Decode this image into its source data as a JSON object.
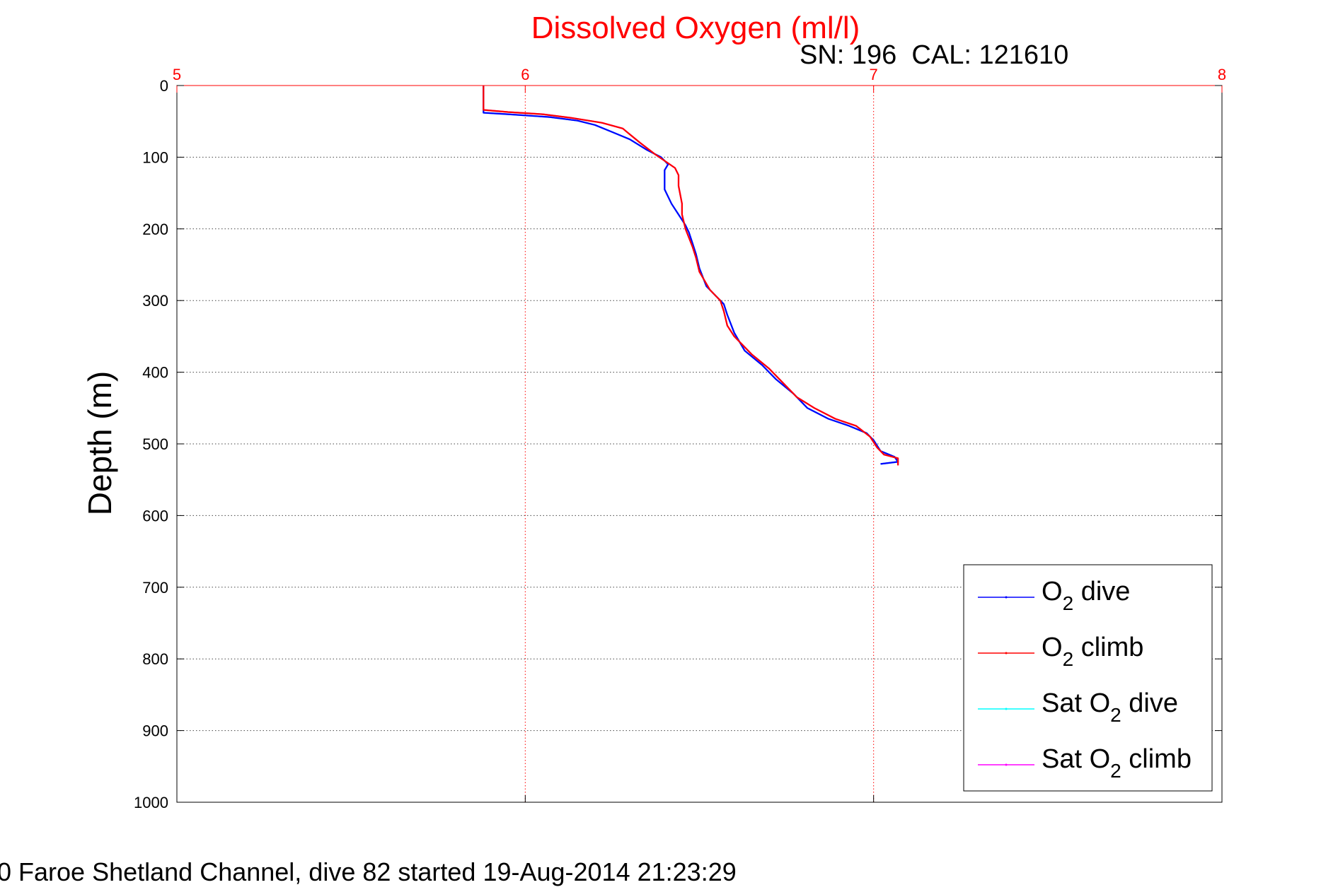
{
  "chart_data": {
    "type": "line",
    "title": "Dissolved Oxygen (ml/l)",
    "subtitle": "SN: 196  CAL: 121610",
    "footer": "0 Faroe Shetland Channel, dive 82 started 19-Aug-2014 21:23:29",
    "xlabel": "",
    "ylabel": "Depth (m)",
    "xlim": [
      5,
      8
    ],
    "ylim": [
      0,
      1000
    ],
    "y_reversed": true,
    "x_ticks": [
      "5",
      "6",
      "7",
      "8"
    ],
    "y_ticks": [
      "0",
      "100",
      "200",
      "300",
      "400",
      "500",
      "600",
      "700",
      "800",
      "900",
      "1000"
    ],
    "x_axis_position": "top",
    "grid": true,
    "legend_position": "bottom-right",
    "colors": {
      "title": "#ff0000",
      "x_axis": "#ff0000",
      "grid_x": "#ff0000",
      "grid_y": "#444444",
      "o2_dive": "#0000ff",
      "o2_climb": "#ff0000",
      "sat_dive": "#00ffff",
      "sat_climb": "#ff00ff"
    },
    "legend": [
      {
        "prefix": "O",
        "sub": "2",
        "suffix": " dive",
        "color": "#0000ff"
      },
      {
        "prefix": "O",
        "sub": "2",
        "suffix": " climb",
        "color": "#ff0000"
      },
      {
        "prefix": "Sat O",
        "sub": "2",
        "suffix": " dive",
        "color": "#00ffff"
      },
      {
        "prefix": "Sat O",
        "sub": "2",
        "suffix": " climb",
        "color": "#ff00ff"
      }
    ],
    "series": [
      {
        "name": "Sat O2 dive",
        "color": "#00ffff",
        "points": [
          [
            5.88,
            0
          ],
          [
            5.88,
            38
          ],
          [
            5.95,
            40
          ],
          [
            6.07,
            44
          ],
          [
            6.15,
            49
          ],
          [
            6.2,
            55
          ],
          [
            6.25,
            65
          ],
          [
            6.3,
            75
          ],
          [
            6.35,
            90
          ],
          [
            6.39,
            100
          ],
          [
            6.41,
            110
          ],
          [
            6.4,
            118
          ],
          [
            6.4,
            130
          ],
          [
            6.4,
            145
          ],
          [
            6.42,
            165
          ],
          [
            6.44,
            180
          ],
          [
            6.46,
            195
          ],
          [
            6.47,
            205
          ],
          [
            6.48,
            220
          ],
          [
            6.49,
            235
          ],
          [
            6.5,
            255
          ],
          [
            6.52,
            280
          ],
          [
            6.55,
            295
          ],
          [
            6.57,
            305
          ],
          [
            6.58,
            320
          ],
          [
            6.6,
            345
          ],
          [
            6.63,
            370
          ],
          [
            6.68,
            390
          ],
          [
            6.72,
            410
          ],
          [
            6.77,
            430
          ],
          [
            6.81,
            450
          ],
          [
            6.87,
            465
          ],
          [
            6.93,
            475
          ],
          [
            6.98,
            485
          ],
          [
            7.0,
            495
          ],
          [
            7.02,
            510
          ],
          [
            7.06,
            518
          ],
          [
            7.07,
            525
          ],
          [
            7.02,
            528
          ]
        ]
      },
      {
        "name": "Sat O2 climb",
        "color": "#ff00ff",
        "points": [
          [
            5.88,
            0
          ],
          [
            5.88,
            34
          ],
          [
            5.95,
            37
          ],
          [
            6.05,
            40
          ],
          [
            6.13,
            45
          ],
          [
            6.22,
            52
          ],
          [
            6.28,
            60
          ],
          [
            6.3,
            68
          ],
          [
            6.33,
            80
          ],
          [
            6.37,
            95
          ],
          [
            6.4,
            105
          ],
          [
            6.43,
            115
          ],
          [
            6.44,
            125
          ],
          [
            6.44,
            140
          ],
          [
            6.45,
            165
          ],
          [
            6.45,
            180
          ],
          [
            6.46,
            200
          ],
          [
            6.48,
            225
          ],
          [
            6.49,
            240
          ],
          [
            6.5,
            260
          ],
          [
            6.53,
            285
          ],
          [
            6.56,
            300
          ],
          [
            6.57,
            315
          ],
          [
            6.58,
            335
          ],
          [
            6.6,
            350
          ],
          [
            6.65,
            375
          ],
          [
            6.7,
            395
          ],
          [
            6.74,
            415
          ],
          [
            6.78,
            435
          ],
          [
            6.83,
            450
          ],
          [
            6.89,
            465
          ],
          [
            6.95,
            475
          ],
          [
            6.99,
            490
          ],
          [
            7.01,
            505
          ],
          [
            7.03,
            515
          ],
          [
            7.07,
            520
          ],
          [
            7.07,
            530
          ]
        ]
      },
      {
        "name": "O2 dive",
        "color": "#0000ff",
        "points": [
          [
            5.88,
            0
          ],
          [
            5.88,
            38
          ],
          [
            5.95,
            40
          ],
          [
            6.07,
            44
          ],
          [
            6.15,
            49
          ],
          [
            6.2,
            55
          ],
          [
            6.25,
            65
          ],
          [
            6.3,
            75
          ],
          [
            6.35,
            90
          ],
          [
            6.39,
            100
          ],
          [
            6.41,
            110
          ],
          [
            6.4,
            118
          ],
          [
            6.4,
            130
          ],
          [
            6.4,
            145
          ],
          [
            6.42,
            165
          ],
          [
            6.44,
            180
          ],
          [
            6.46,
            195
          ],
          [
            6.47,
            205
          ],
          [
            6.48,
            220
          ],
          [
            6.49,
            235
          ],
          [
            6.5,
            255
          ],
          [
            6.52,
            280
          ],
          [
            6.55,
            295
          ],
          [
            6.57,
            305
          ],
          [
            6.58,
            320
          ],
          [
            6.6,
            345
          ],
          [
            6.63,
            370
          ],
          [
            6.68,
            390
          ],
          [
            6.72,
            410
          ],
          [
            6.77,
            430
          ],
          [
            6.81,
            450
          ],
          [
            6.87,
            465
          ],
          [
            6.93,
            475
          ],
          [
            6.98,
            485
          ],
          [
            7.0,
            495
          ],
          [
            7.02,
            510
          ],
          [
            7.06,
            518
          ],
          [
            7.07,
            525
          ],
          [
            7.02,
            528
          ]
        ]
      },
      {
        "name": "O2 climb",
        "color": "#ff0000",
        "points": [
          [
            5.88,
            0
          ],
          [
            5.88,
            34
          ],
          [
            5.95,
            37
          ],
          [
            6.05,
            40
          ],
          [
            6.13,
            45
          ],
          [
            6.22,
            52
          ],
          [
            6.28,
            60
          ],
          [
            6.3,
            68
          ],
          [
            6.33,
            80
          ],
          [
            6.37,
            95
          ],
          [
            6.4,
            105
          ],
          [
            6.43,
            115
          ],
          [
            6.44,
            125
          ],
          [
            6.44,
            140
          ],
          [
            6.45,
            165
          ],
          [
            6.45,
            180
          ],
          [
            6.46,
            200
          ],
          [
            6.48,
            225
          ],
          [
            6.49,
            240
          ],
          [
            6.5,
            260
          ],
          [
            6.53,
            285
          ],
          [
            6.56,
            300
          ],
          [
            6.57,
            315
          ],
          [
            6.58,
            335
          ],
          [
            6.6,
            350
          ],
          [
            6.65,
            375
          ],
          [
            6.7,
            395
          ],
          [
            6.74,
            415
          ],
          [
            6.78,
            435
          ],
          [
            6.83,
            450
          ],
          [
            6.89,
            465
          ],
          [
            6.95,
            475
          ],
          [
            6.99,
            490
          ],
          [
            7.01,
            505
          ],
          [
            7.03,
            515
          ],
          [
            7.07,
            520
          ],
          [
            7.07,
            530
          ]
        ]
      }
    ]
  }
}
